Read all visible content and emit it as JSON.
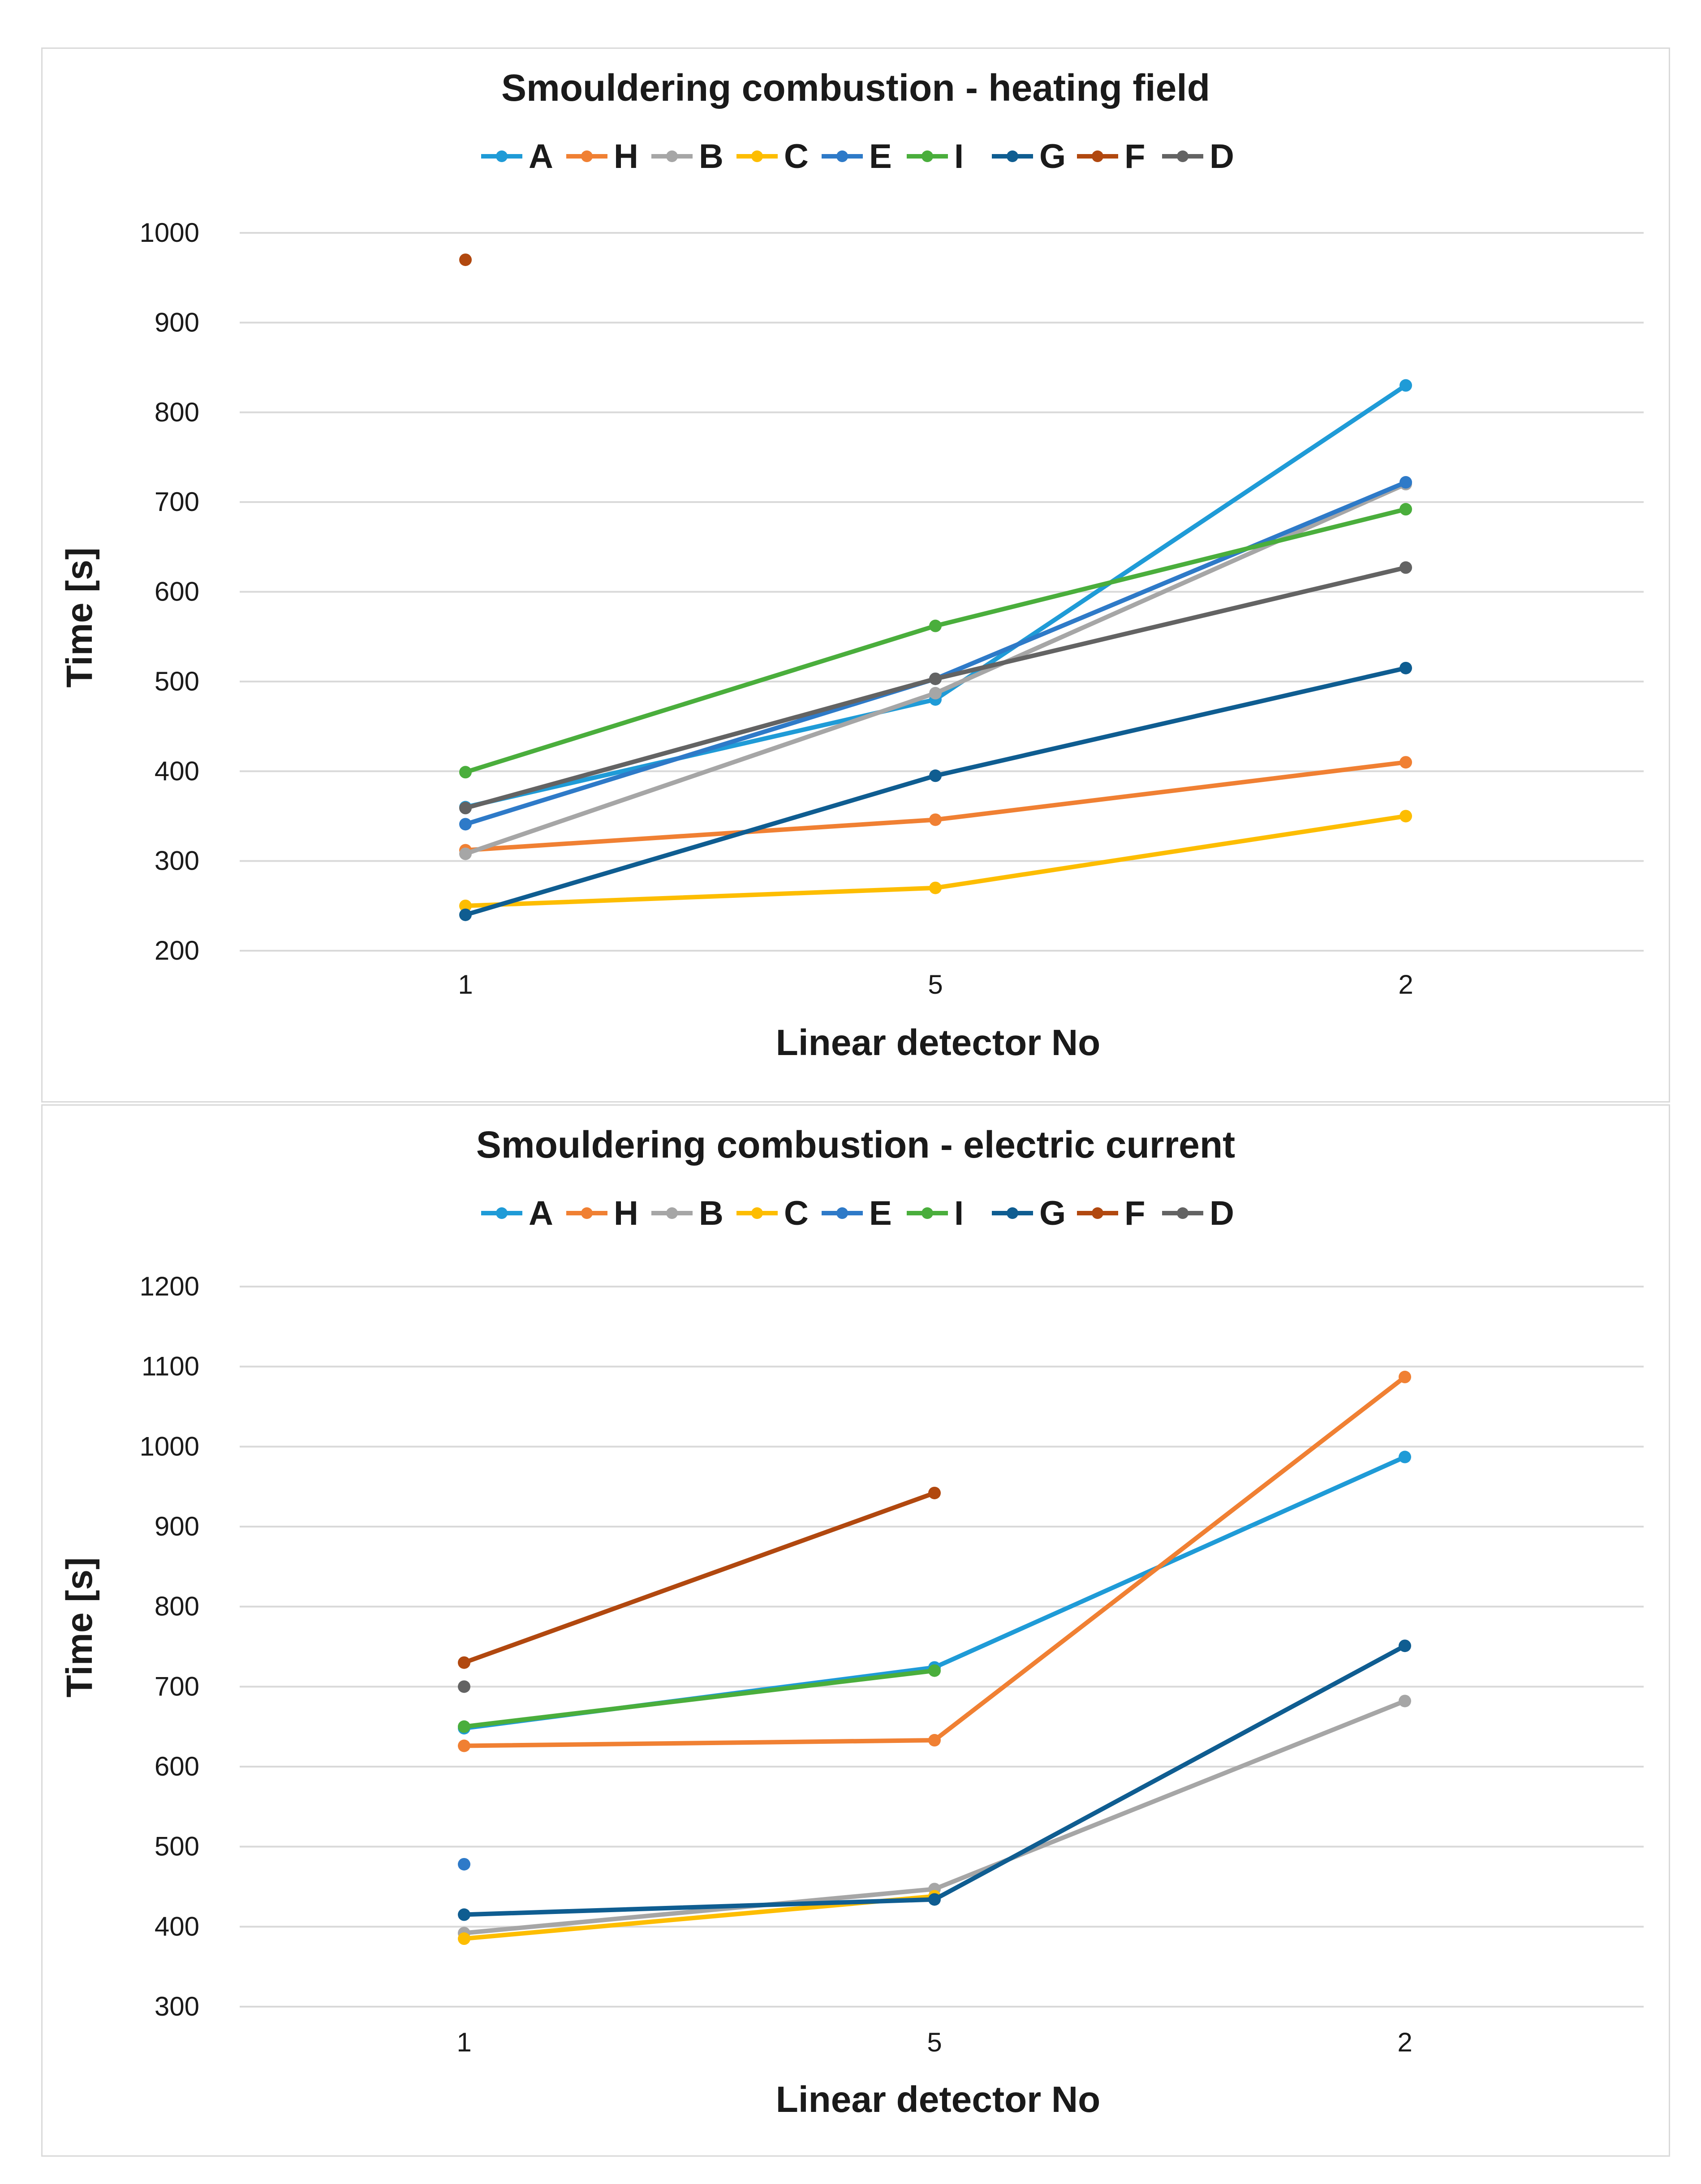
{
  "chart_data": [
    {
      "type": "line",
      "title": "Smouldering combustion - heating field",
      "xlabel": "Linear detector No",
      "ylabel": "Time  [s]",
      "categories": [
        "1",
        "5",
        "2"
      ],
      "ylim": [
        200,
        1000
      ],
      "yticks": [
        200,
        300,
        400,
        500,
        600,
        700,
        800,
        900,
        1000
      ],
      "grid": true,
      "legend_position": "top",
      "series": [
        {
          "name": "A",
          "color": "#1f9bd7",
          "values": [
            360,
            480,
            830
          ]
        },
        {
          "name": "H",
          "color": "#f08033",
          "values": [
            312,
            346,
            410
          ]
        },
        {
          "name": "B",
          "color": "#a6a6a6",
          "values": [
            308,
            487,
            720
          ]
        },
        {
          "name": "C",
          "color": "#fdbd00",
          "values": [
            250,
            270,
            350
          ]
        },
        {
          "name": "E",
          "color": "#2e7ac8",
          "values": [
            341,
            503,
            722
          ]
        },
        {
          "name": "I",
          "color": "#4aae3c",
          "values": [
            399,
            562,
            692
          ]
        },
        {
          "name": "G",
          "color": "#0f5d91",
          "values": [
            240,
            395,
            515
          ]
        },
        {
          "name": "F",
          "color": "#b1480f",
          "values": [
            970,
            null,
            null
          ]
        },
        {
          "name": "D",
          "color": "#636363",
          "values": [
            359,
            503,
            627
          ]
        }
      ]
    },
    {
      "type": "line",
      "title": "Smouldering combustion  - electric current",
      "xlabel": "Linear detector No",
      "ylabel": "Time [s]",
      "categories": [
        "1",
        "5",
        "2"
      ],
      "ylim": [
        300,
        1200
      ],
      "yticks": [
        300,
        400,
        500,
        600,
        700,
        800,
        900,
        1000,
        1100,
        1200
      ],
      "grid": true,
      "legend_position": "top",
      "series": [
        {
          "name": "A",
          "color": "#1f9bd7",
          "values": [
            648,
            724,
            987
          ]
        },
        {
          "name": "H",
          "color": "#f08033",
          "values": [
            626,
            633,
            1087
          ]
        },
        {
          "name": "B",
          "color": "#a6a6a6",
          "values": [
            392,
            447,
            682
          ]
        },
        {
          "name": "C",
          "color": "#fdbd00",
          "values": [
            385,
            438,
            null
          ]
        },
        {
          "name": "E",
          "color": "#2e7ac8",
          "values": [
            478,
            null,
            null
          ]
        },
        {
          "name": "I",
          "color": "#4aae3c",
          "values": [
            650,
            720,
            null
          ]
        },
        {
          "name": "G",
          "color": "#0f5d91",
          "values": [
            415,
            434,
            751
          ]
        },
        {
          "name": "F",
          "color": "#b1480f",
          "values": [
            730,
            942,
            null
          ]
        },
        {
          "name": "D",
          "color": "#636363",
          "values": [
            700,
            null,
            null
          ]
        }
      ]
    }
  ]
}
